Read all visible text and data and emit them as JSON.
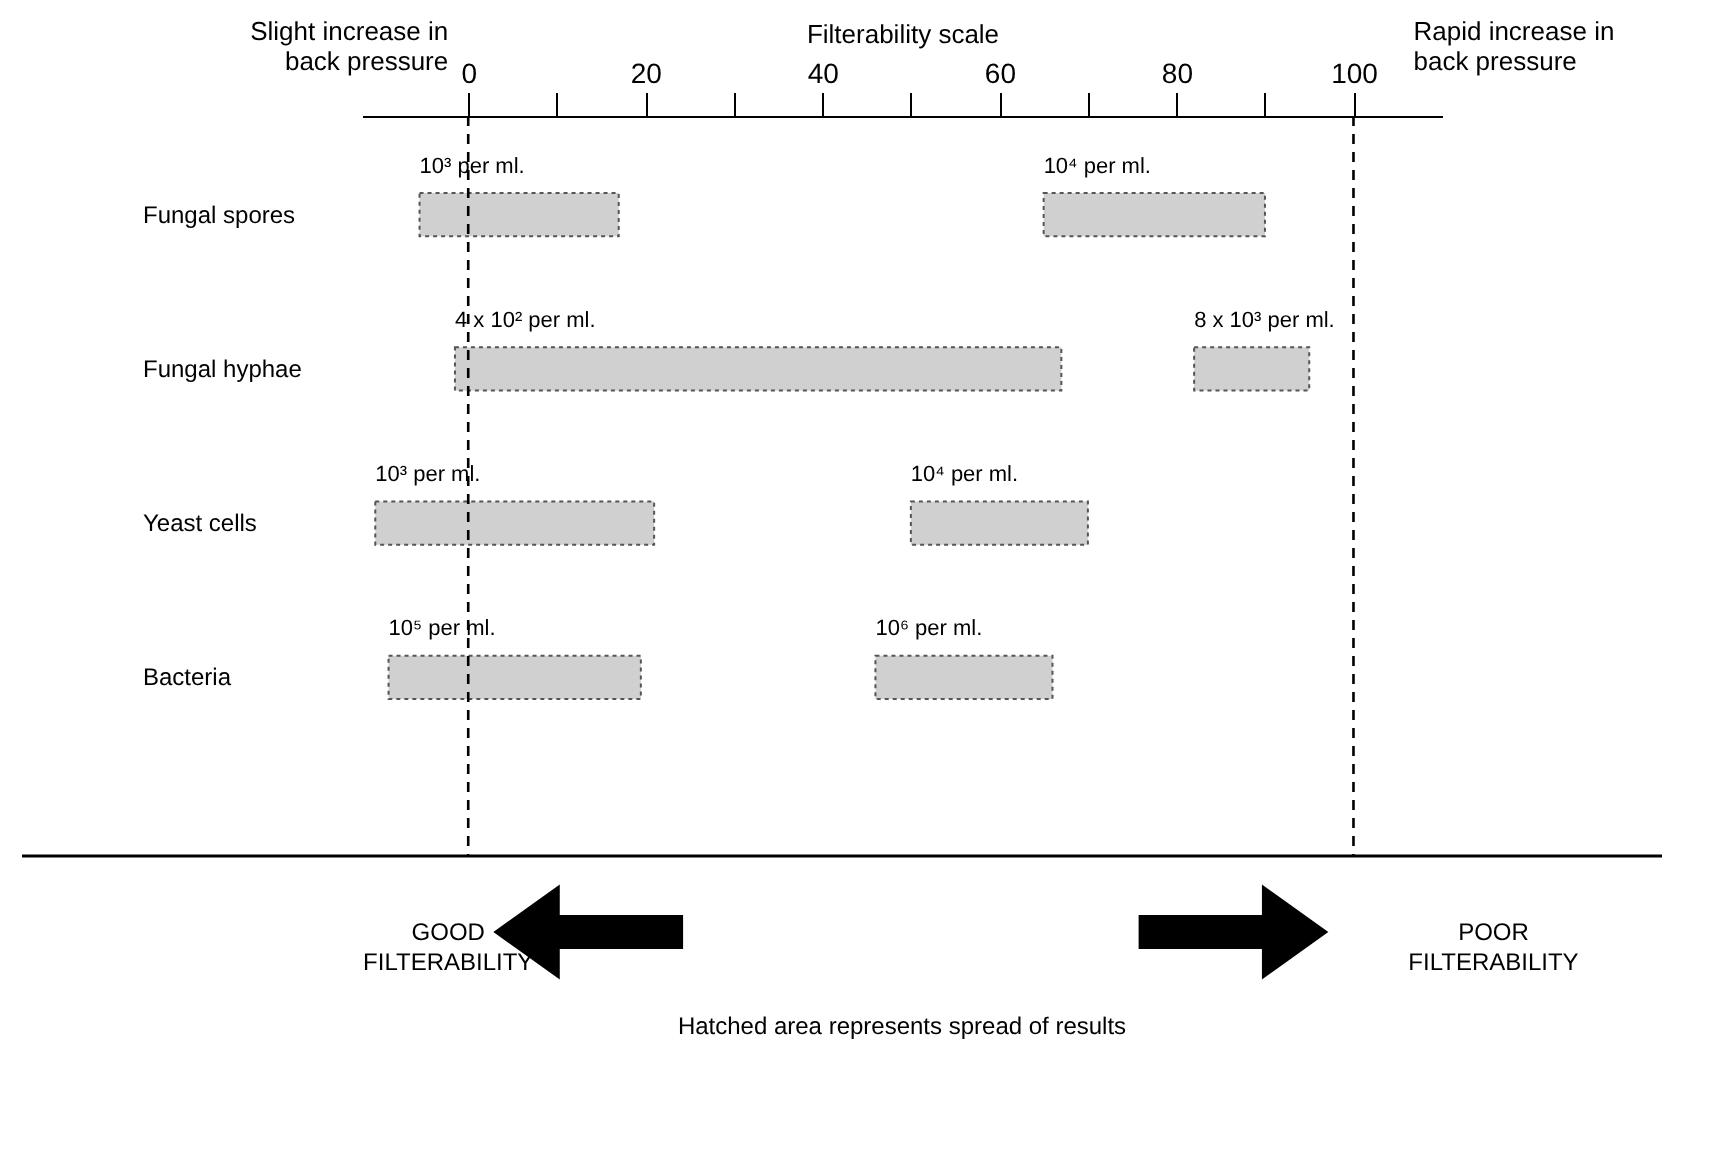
{
  "chart_data": {
    "type": "bar",
    "orientation": "horizontal",
    "xlabel": "Filterability scale",
    "categories": [
      "Fungal spores",
      "Fungal hyphae",
      "Yeast cells",
      "Bacteria"
    ],
    "series": [
      {
        "color": "#d0d0d0",
        "base": [
          -5.5,
          -1.5,
          -10.5,
          -9
        ],
        "values": [
          22.5,
          68.5,
          31.5,
          28.5
        ]
      },
      {
        "color": "#d0d0d0",
        "base": [
          65,
          82,
          50,
          46
        ],
        "values": [
          25,
          13,
          20,
          20
        ]
      }
    ],
    "xlim": [
      -12,
      110
    ],
    "xticks": [
      0,
      {
        "value": 10,
        "label": null
      },
      20,
      {
        "value": 30,
        "label": null
      },
      40,
      {
        "value": 50,
        "label": null
      },
      60,
      {
        "value": 70,
        "label": null
      },
      80,
      {
        "value": 90,
        "label": null
      },
      100
    ],
    "ref_lines": [
      {
        "axis": "x",
        "value": 0,
        "line_style": "dashed",
        "color": "#000000"
      },
      {
        "axis": "x",
        "value": 100,
        "line_style": "dashed",
        "color": "#000000"
      }
    ],
    "annotations": [
      "Slight increase in back pressure",
      "Rapid increase in back pressure",
      "GOOD FILTERABILITY",
      "POOR FILTERABILITY",
      "Hatched area represents spread of results",
      {
        "text": "10³ per ml.",
        "x": -5.5,
        "y": "Fungal spores"
      },
      {
        "text": "10⁴ per ml.",
        "x": 65,
        "y": "Fungal spores"
      },
      {
        "text": "4 x 10² per ml.",
        "x": -1.5,
        "y": "Fungal hyphae"
      },
      {
        "text": "8 x 10³ per ml.",
        "x": 82,
        "y": "Fungal hyphae"
      },
      {
        "text": "10³ per ml.",
        "x": -10.5,
        "y": "Yeast cells"
      },
      {
        "text": "10⁴ per ml.",
        "x": 50,
        "y": "Yeast cells"
      },
      {
        "text": "10⁵ per ml.",
        "x": -9,
        "y": "Bacteria"
      },
      {
        "text": "10⁶ per ml.",
        "x": 46,
        "y": "Bacteria"
      }
    ],
    "grid": false,
    "legend": false
  }
}
